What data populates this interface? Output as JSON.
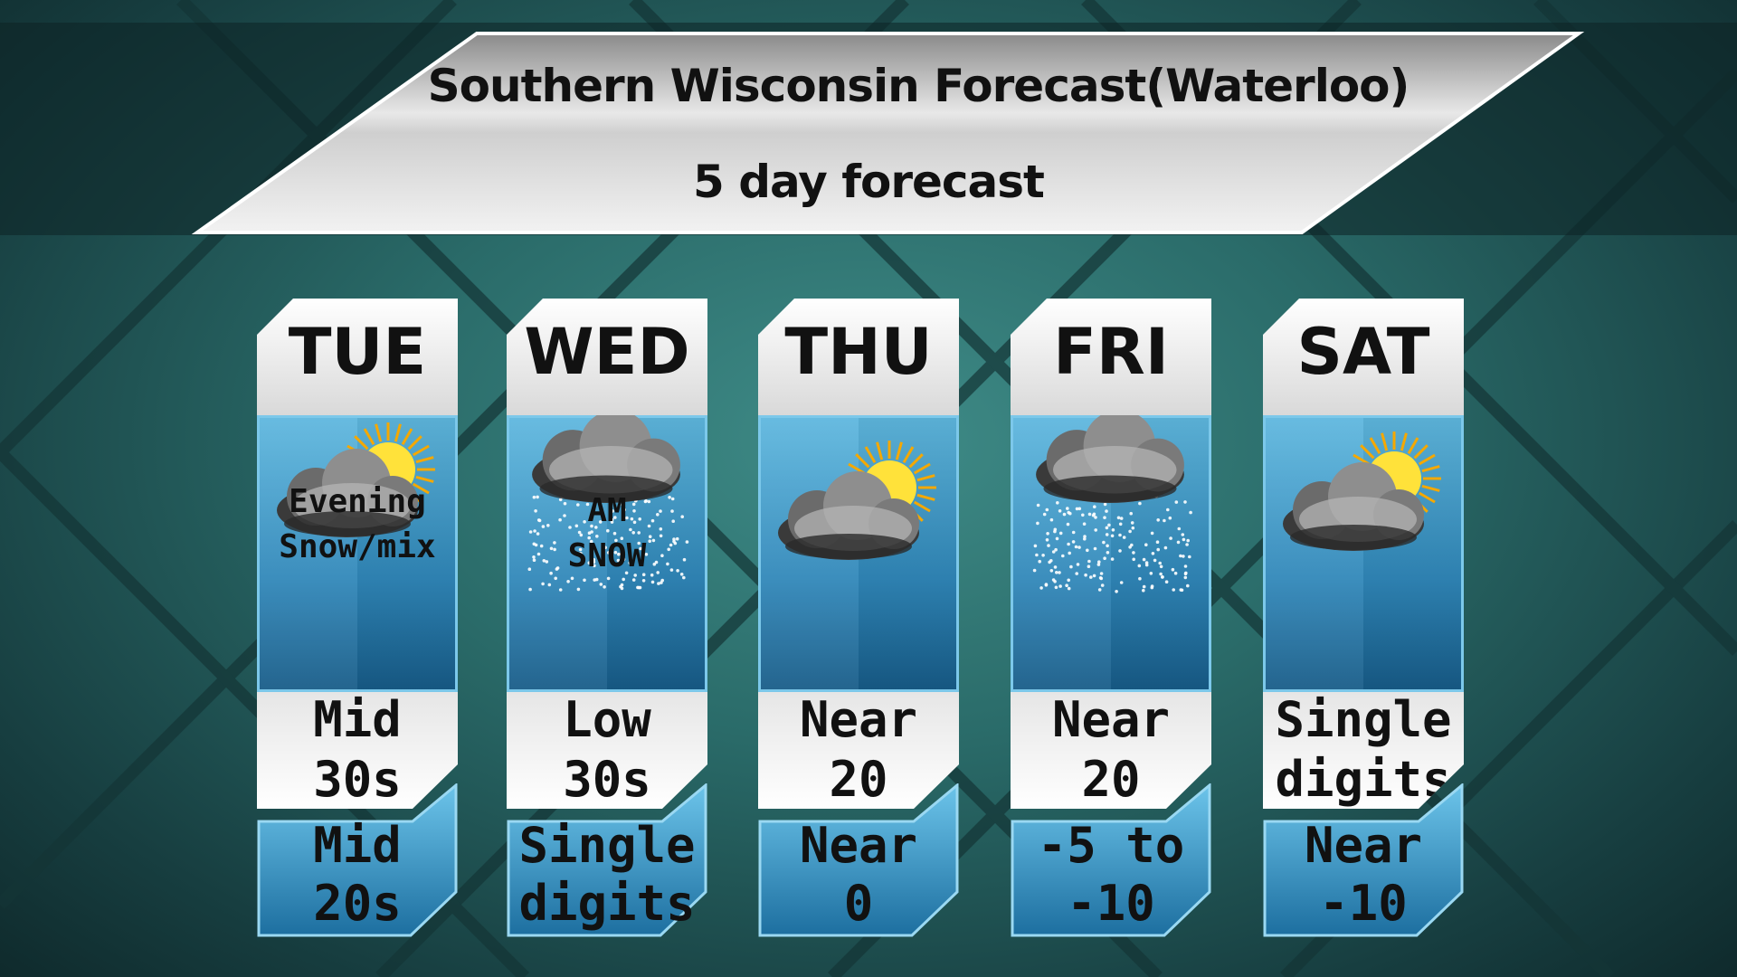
{
  "header": {
    "title": "Southern Wisconsin Forecast(Waterloo)",
    "subtitle": "5 day forecast"
  },
  "colors": {
    "background": "#2a6b69",
    "panel_blue": "#2f86b8",
    "panel_white": "#f2f2f2"
  },
  "days": [
    {
      "day": "TUE",
      "icon": "partly-cloudy-sun-icon",
      "condition_line1": "Evening",
      "condition_line2": "Snow/mix",
      "high_line1": "Mid",
      "high_line2": "30s",
      "low_line1": "Mid",
      "low_line2": "20s"
    },
    {
      "day": "WED",
      "icon": "snow-cloud-icon",
      "condition_line1": "AM",
      "condition_line2": "SNOW",
      "high_line1": "Low",
      "high_line2": "30s",
      "low_line1": "Single",
      "low_line2": "digits"
    },
    {
      "day": "THU",
      "icon": "partly-cloudy-sun-icon",
      "condition_line1": "",
      "condition_line2": "",
      "high_line1": "Near",
      "high_line2": "20",
      "low_line1": "Near",
      "low_line2": "0"
    },
    {
      "day": "FRI",
      "icon": "snow-cloud-icon",
      "condition_line1": "",
      "condition_line2": "",
      "high_line1": "Near",
      "high_line2": "20",
      "low_line1": "-5 to",
      "low_line2": "-10"
    },
    {
      "day": "SAT",
      "icon": "partly-cloudy-sun-icon",
      "condition_line1": "",
      "condition_line2": "",
      "high_line1": "Single",
      "high_line2": "digits",
      "low_line1": "Near",
      "low_line2": "-10"
    }
  ]
}
